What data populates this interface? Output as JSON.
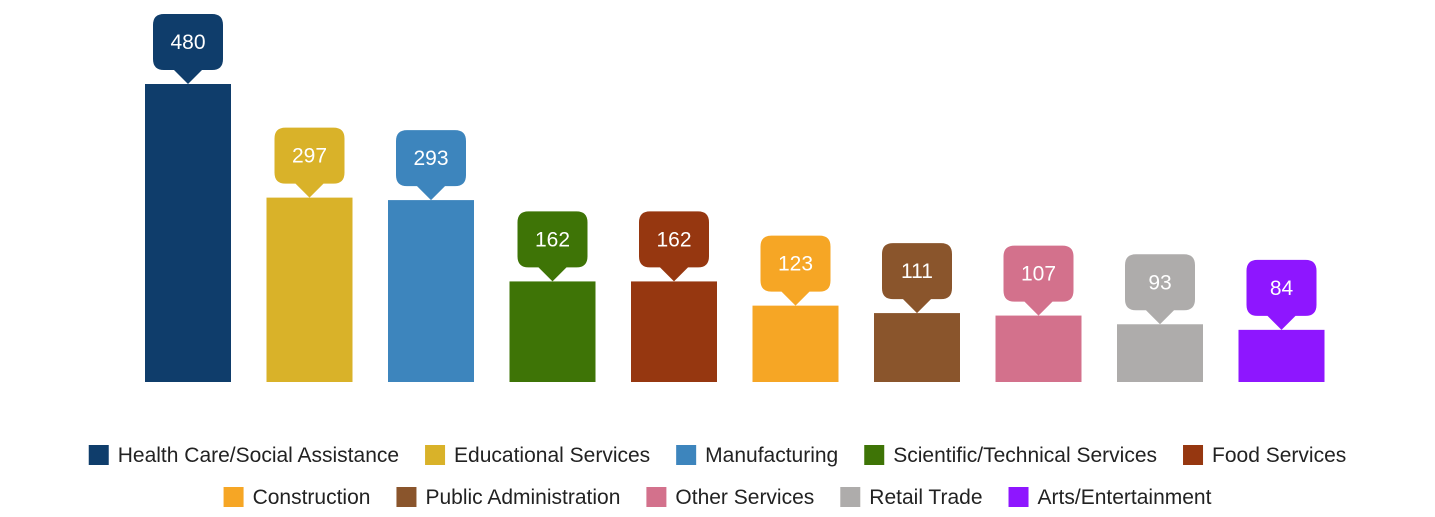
{
  "chart_data": {
    "type": "bar",
    "title": "",
    "xlabel": "",
    "ylabel": "",
    "ylim": [
      0,
      480
    ],
    "grid": false,
    "legend_position": "bottom",
    "data_labels": "callout-above-bar",
    "categories": [
      "Health Care/Social Assistance",
      "Educational Services",
      "Manufacturing",
      "Scientific/Technical Services",
      "Food Services",
      "Construction",
      "Public Administration",
      "Other Services",
      "Retail Trade",
      "Arts/Entertainment"
    ],
    "values": [
      480,
      297,
      293,
      162,
      162,
      123,
      111,
      107,
      93,
      84
    ],
    "colors": [
      "#0f3d6b",
      "#d9b229",
      "#3d85bd",
      "#3e7406",
      "#963710",
      "#f6a625",
      "#8a552c",
      "#d3718c",
      "#aeacab",
      "#8e16ff"
    ]
  }
}
